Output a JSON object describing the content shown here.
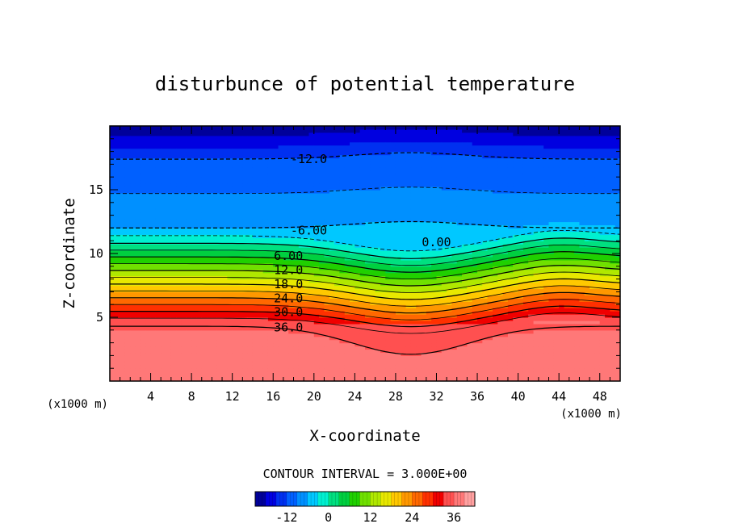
{
  "chart_data": {
    "type": "heatmap",
    "title": "disturbunce of potential temperature",
    "xlabel": "X-coordinate",
    "ylabel": "Z-coordinate",
    "x_unit": "(x1000 m)",
    "y_unit": "(x1000 m)",
    "xlim": [
      0,
      50
    ],
    "ylim": [
      0,
      20
    ],
    "x_ticks": [
      4,
      8,
      12,
      16,
      20,
      24,
      28,
      32,
      36,
      40,
      44,
      48
    ],
    "y_ticks": [
      5,
      10,
      15
    ],
    "contour_interval_label": "CONTOUR INTERVAL = 3.000E+00",
    "contour_interval": 3.0,
    "contour_labels": [
      {
        "text": "-12.0",
        "value": -12,
        "x": 19.5,
        "z": 17.4
      },
      {
        "text": "-6.00",
        "value": -6,
        "x": 19.5,
        "z": 11.8
      },
      {
        "text": "0.00",
        "value": 0,
        "x": 32,
        "z": 10.9
      },
      {
        "text": "6.00",
        "value": 6,
        "x": 17.5,
        "z": 9.8
      },
      {
        "text": "12.0",
        "value": 12,
        "x": 17.5,
        "z": 8.7
      },
      {
        "text": "18.0",
        "value": 18,
        "x": 17.5,
        "z": 7.6
      },
      {
        "text": "24.0",
        "value": 24,
        "x": 17.5,
        "z": 6.5
      },
      {
        "text": "30.0",
        "value": 30,
        "x": 17.5,
        "z": 5.4
      },
      {
        "text": "36.0",
        "value": 36,
        "x": 17.5,
        "z": 4.2
      }
    ],
    "colorbar": {
      "min": -21,
      "max": 42,
      "ticks": [
        -12,
        0,
        12,
        24,
        36
      ],
      "tick_labels": [
        "-12",
        "0",
        "12",
        "24",
        "36"
      ]
    }
  }
}
